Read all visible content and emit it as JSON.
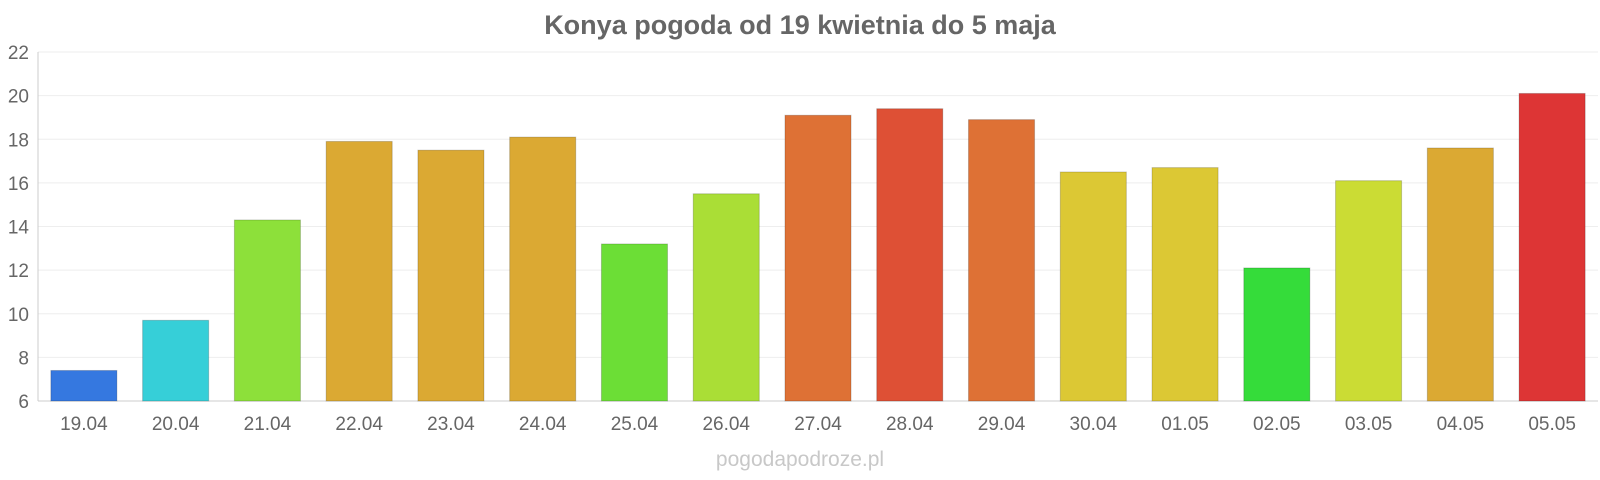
{
  "chart_data": {
    "type": "bar",
    "title": "Konya pogoda od 19 kwietnia do 5 maja",
    "source": "pogodapodroze.pl",
    "categories": [
      "19.04",
      "20.04",
      "21.04",
      "22.04",
      "23.04",
      "24.04",
      "25.04",
      "26.04",
      "27.04",
      "28.04",
      "29.04",
      "30.04",
      "01.05",
      "02.05",
      "03.05",
      "04.05",
      "05.05"
    ],
    "values": [
      7.4,
      9.7,
      14.3,
      17.9,
      17.5,
      18.1,
      13.2,
      15.5,
      19.1,
      19.4,
      18.9,
      16.5,
      16.7,
      12.1,
      16.1,
      17.6,
      20.1
    ],
    "colors": [
      "#3578e0",
      "#36cfd8",
      "#8de03a",
      "#dba933",
      "#dba933",
      "#dba933",
      "#6cde36",
      "#aade36",
      "#de7135",
      "#de5035",
      "#de7135",
      "#dcc834",
      "#dcc834",
      "#35dc3a",
      "#cbdc34",
      "#dba933",
      "#dd3535"
    ],
    "ylim": [
      6,
      22
    ],
    "yticks": [
      6,
      8,
      10,
      12,
      14,
      16,
      18,
      20,
      22
    ],
    "grid": true,
    "xlabel": "",
    "ylabel": ""
  }
}
